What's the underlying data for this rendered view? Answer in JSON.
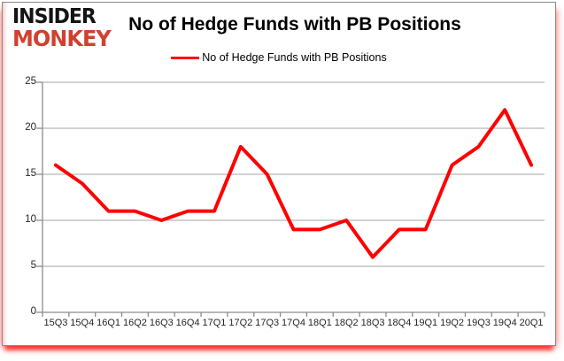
{
  "logo": {
    "line1": "INSIDER",
    "line2": "MONKEY"
  },
  "header": {
    "title": "No of Hedge Funds with PB Positions"
  },
  "legend": {
    "label": "No of Hedge Funds with PB Positions",
    "swatch_color": "#ff0000"
  },
  "chart_data": {
    "type": "line",
    "title": "No of Hedge Funds with PB Positions",
    "categories": [
      "15Q3",
      "15Q4",
      "16Q1",
      "16Q2",
      "16Q3",
      "16Q4",
      "17Q1",
      "17Q2",
      "17Q3",
      "17Q4",
      "18Q1",
      "18Q2",
      "18Q3",
      "18Q4",
      "19Q1",
      "19Q2",
      "19Q3",
      "19Q4",
      "20Q1"
    ],
    "series": [
      {
        "name": "No of Hedge Funds with PB Positions",
        "color": "#ff0000",
        "values": [
          16,
          14,
          11,
          11,
          10,
          11,
          11,
          18,
          15,
          9,
          9,
          10,
          6,
          9,
          9,
          16,
          18,
          22,
          16
        ]
      }
    ],
    "xlabel": "",
    "ylabel": "",
    "ylim": [
      0,
      25
    ],
    "yticks": [
      0,
      5,
      10,
      15,
      20,
      25
    ],
    "grid": true,
    "legend_position": "top-center"
  },
  "colors": {
    "line": "#ff0000",
    "gridline": "#a6a6a6",
    "axis": "#8c8c8c",
    "logo_black": "#141414",
    "logo_red": "#cf4130",
    "text": "#000000"
  }
}
